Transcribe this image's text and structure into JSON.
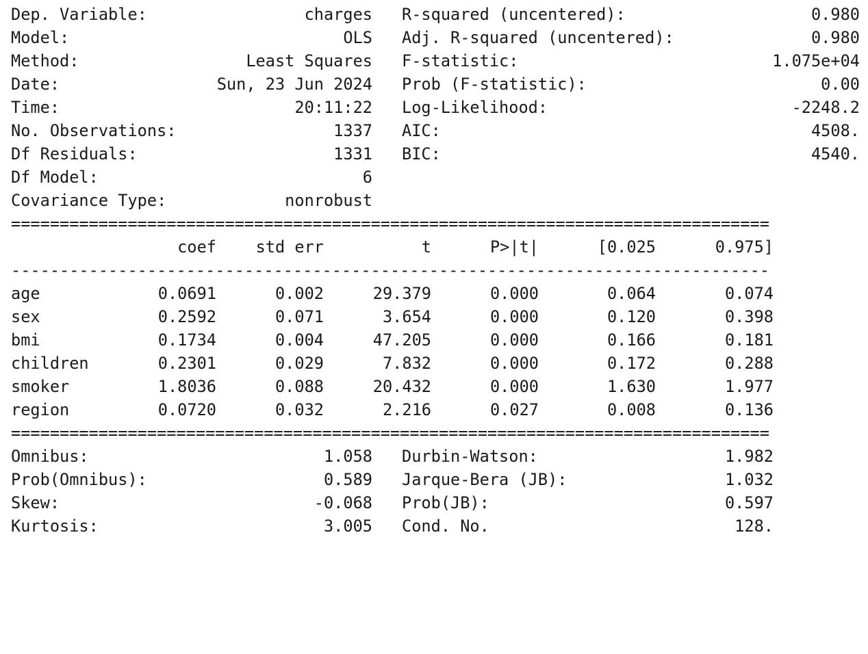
{
  "top": {
    "left": [
      {
        "label": "Dep. Variable:",
        "value": "charges"
      },
      {
        "label": "Model:",
        "value": "OLS"
      },
      {
        "label": "Method:",
        "value": "Least Squares"
      },
      {
        "label": "Date:",
        "value": "Sun, 23 Jun 2024"
      },
      {
        "label": "Time:",
        "value": "20:11:22"
      },
      {
        "label": "No. Observations:",
        "value": "1337"
      },
      {
        "label": "Df Residuals:",
        "value": "1331"
      },
      {
        "label": "Df Model:",
        "value": "6"
      },
      {
        "label": "Covariance Type:",
        "value": "nonrobust"
      }
    ],
    "right": [
      {
        "label": "R-squared (uncentered):",
        "value": "0.980"
      },
      {
        "label": "Adj. R-squared (uncentered):",
        "value": "0.980"
      },
      {
        "label": "F-statistic:",
        "value": "1.075e+04"
      },
      {
        "label": "Prob (F-statistic):",
        "value": "0.00"
      },
      {
        "label": "Log-Likelihood:",
        "value": "-2248.2"
      },
      {
        "label": "AIC:",
        "value": "4508."
      },
      {
        "label": "BIC:",
        "value": "4540."
      }
    ]
  },
  "rules": {
    "double": "==============================================================================",
    "single": "------------------------------------------------------------------------------"
  },
  "coef_table": {
    "headers": [
      "coef",
      "std err",
      "t",
      "P>|t|",
      "[0.025",
      "0.975]"
    ],
    "rows": [
      {
        "name": "age",
        "values": [
          "0.0691",
          "0.002",
          "29.379",
          "0.000",
          "0.064",
          "0.074"
        ]
      },
      {
        "name": "sex",
        "values": [
          "0.2592",
          "0.071",
          "3.654",
          "0.000",
          "0.120",
          "0.398"
        ]
      },
      {
        "name": "bmi",
        "values": [
          "0.1734",
          "0.004",
          "47.205",
          "0.000",
          "0.166",
          "0.181"
        ]
      },
      {
        "name": "children",
        "values": [
          "0.2301",
          "0.029",
          "7.832",
          "0.000",
          "0.172",
          "0.288"
        ]
      },
      {
        "name": "smoker",
        "values": [
          "1.8036",
          "0.088",
          "20.432",
          "0.000",
          "1.630",
          "1.977"
        ]
      },
      {
        "name": "region",
        "values": [
          "0.0720",
          "0.032",
          "2.216",
          "0.027",
          "0.008",
          "0.136"
        ]
      }
    ]
  },
  "bottom": {
    "left": [
      {
        "label": "Omnibus:",
        "value": "1.058"
      },
      {
        "label": "Prob(Omnibus):",
        "value": "0.589"
      },
      {
        "label": "Skew:",
        "value": "-0.068"
      },
      {
        "label": "Kurtosis:",
        "value": "3.005"
      }
    ],
    "right": [
      {
        "label": "Durbin-Watson:",
        "value": "1.982"
      },
      {
        "label": "Jarque-Bera (JB):",
        "value": "1.032"
      },
      {
        "label": "Prob(JB):",
        "value": "0.597"
      },
      {
        "label": "Cond. No.",
        "value": "128."
      }
    ]
  }
}
